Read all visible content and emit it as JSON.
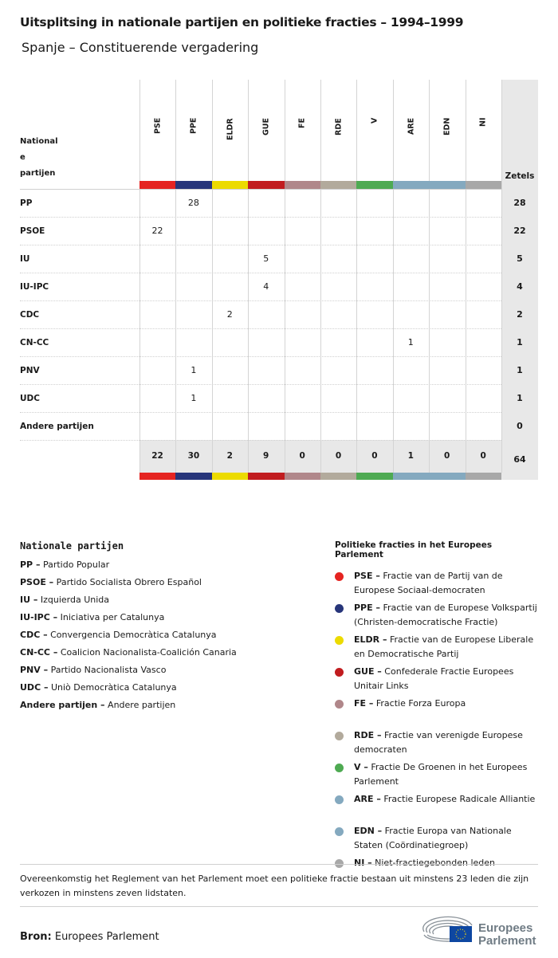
{
  "title": "Uitsplitsing in nationale partijen en politieke fracties – 1994–1999",
  "subtitle": "Spanje – Constituerende vergadering",
  "chart_data": {
    "type": "table",
    "row_header": [
      "National",
      "e",
      "partijen"
    ],
    "total_header": "Zetels",
    "groups": [
      {
        "code": "PSE",
        "color": "#e52421"
      },
      {
        "code": "PPE",
        "color": "#27357a"
      },
      {
        "code": "ELDR",
        "color": "#ecdb00"
      },
      {
        "code": "GUE",
        "color": "#c11c1f"
      },
      {
        "code": "FE",
        "color": "#b0878a"
      },
      {
        "code": "RDE",
        "color": "#b2aa9c"
      },
      {
        "code": "V",
        "color": "#4eaa52"
      },
      {
        "code": "ARE",
        "color": "#84a9bf"
      },
      {
        "code": "EDN",
        "color": "#84a9bf"
      },
      {
        "code": "NI",
        "color": "#a8a8a8"
      }
    ],
    "rows": [
      {
        "party": "PP",
        "values": [
          null,
          28,
          null,
          null,
          null,
          null,
          null,
          null,
          null,
          null
        ],
        "total": 28
      },
      {
        "party": "PSOE",
        "values": [
          22,
          null,
          null,
          null,
          null,
          null,
          null,
          null,
          null,
          null
        ],
        "total": 22
      },
      {
        "party": "IU",
        "values": [
          null,
          null,
          null,
          5,
          null,
          null,
          null,
          null,
          null,
          null
        ],
        "total": 5
      },
      {
        "party": "IU-IPC",
        "values": [
          null,
          null,
          null,
          4,
          null,
          null,
          null,
          null,
          null,
          null
        ],
        "total": 4
      },
      {
        "party": "CDC",
        "values": [
          null,
          null,
          2,
          null,
          null,
          null,
          null,
          null,
          null,
          null
        ],
        "total": 2
      },
      {
        "party": "CN-CC",
        "values": [
          null,
          null,
          null,
          null,
          null,
          null,
          null,
          1,
          null,
          null
        ],
        "total": 1
      },
      {
        "party": "PNV",
        "values": [
          null,
          1,
          null,
          null,
          null,
          null,
          null,
          null,
          null,
          null
        ],
        "total": 1
      },
      {
        "party": "UDC",
        "values": [
          null,
          1,
          null,
          null,
          null,
          null,
          null,
          null,
          null,
          null
        ],
        "total": 1
      },
      {
        "party": "Andere partijen",
        "values": [
          null,
          null,
          null,
          null,
          null,
          null,
          null,
          null,
          null,
          null
        ],
        "total": 0
      }
    ],
    "column_totals": [
      22,
      30,
      2,
      9,
      0,
      0,
      0,
      1,
      0,
      0
    ],
    "grand_total": 64
  },
  "legend_parties": {
    "heading": "Nationale partijen",
    "items": [
      {
        "code": "PP –",
        "name": " Partido Popular"
      },
      {
        "code": "PSOE –",
        "name": " Partido Socialista Obrero Español"
      },
      {
        "code": "IU –",
        "name": " Izquierda Unida"
      },
      {
        "code": "IU-IPC –",
        "name": " Iniciativa per Catalunya"
      },
      {
        "code": "CDC –",
        "name": " Convergencia Democràtica Catalunya"
      },
      {
        "code": "CN-CC –",
        "name": " Coalicion Nacionalista-Coalición Canaria"
      },
      {
        "code": "PNV –",
        "name": " Partido Nacionalista Vasco"
      },
      {
        "code": "UDC –",
        "name": " Uniò Democràtica Catalunya"
      },
      {
        "code": "Andere partijen –",
        "name": " Andere partijen"
      }
    ]
  },
  "legend_groups": {
    "heading": "Politieke fracties in het Europees Parlement",
    "items": [
      {
        "code": "PSE –",
        "name": " Fractie van de Partij van de Europese Sociaal-democraten"
      },
      {
        "code": "PPE –",
        "name": " Fractie van de Europese Volkspartij (Christen-democratische Fractie)"
      },
      {
        "code": "ELDR –",
        "name": " Fractie van de Europese Liberale en Democratische Partij"
      },
      {
        "code": "GUE –",
        "name": " Confederale Fractie Europees Unitair Links"
      },
      {
        "code": "FE –",
        "name": " Fractie Forza Europa"
      },
      {
        "code": "RDE –",
        "name": " Fractie van verenigde Europese democraten"
      },
      {
        "code": "V –",
        "name": " Fractie De Groenen in het Europees Parlement"
      },
      {
        "code": "ARE –",
        "name": " Fractie Europese Radicale Alliantie"
      },
      {
        "code": "EDN –",
        "name": " Fractie Europa van Nationale Staten (Coördinatiegroep)"
      },
      {
        "code": "NI –",
        "name": " Niet-fractiegebonden leden"
      }
    ]
  },
  "note": "Overeenkomstig het Reglement van het Parlement moet een politieke fractie bestaan uit minstens 23 leden die zijn verkozen in minstens zeven lidstaten.",
  "source_label": "Bron:",
  "source": " Europees Parlement",
  "logo": {
    "line1": "Europees",
    "line2": "Parlement"
  }
}
